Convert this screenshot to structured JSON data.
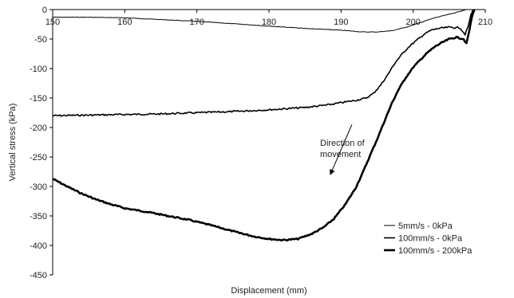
{
  "chart_data": {
    "type": "line",
    "xlabel": "Displacement (mm)",
    "ylabel": "Vertical stress (kPa)",
    "xlim": [
      150,
      210
    ],
    "ylim": [
      -450,
      0
    ],
    "x_ticks": [
      150,
      160,
      170,
      180,
      190,
      200,
      210
    ],
    "y_ticks": [
      0,
      -50,
      -100,
      -150,
      -200,
      -250,
      -300,
      -350,
      -400,
      -450
    ],
    "grid": false,
    "legend_position": "bottom-right",
    "annotation": {
      "lines": [
        "Direction of",
        "movement"
      ],
      "arrow_from": [
        191.5,
        -195
      ],
      "arrow_to": [
        188.5,
        -280
      ]
    },
    "series": [
      {
        "name": "5mm/s - 0kPa",
        "line_width": "thin",
        "color": "#000000",
        "points": [
          [
            150,
            -13
          ],
          [
            155,
            -13
          ],
          [
            160,
            -14
          ],
          [
            165,
            -17
          ],
          [
            170,
            -20
          ],
          [
            175,
            -24
          ],
          [
            180,
            -28
          ],
          [
            185,
            -32
          ],
          [
            190,
            -35
          ],
          [
            193,
            -38
          ],
          [
            195,
            -38
          ],
          [
            197,
            -36
          ],
          [
            199,
            -30
          ],
          [
            201,
            -22
          ],
          [
            203,
            -14
          ],
          [
            205,
            -8
          ],
          [
            206.5,
            -3
          ],
          [
            207.3,
            0
          ]
        ]
      },
      {
        "name": "100mm/s - 0kPa",
        "line_width": "medium",
        "color": "#000000",
        "points": [
          [
            150,
            -180
          ],
          [
            155,
            -179
          ],
          [
            160,
            -178
          ],
          [
            165,
            -177
          ],
          [
            170,
            -175
          ],
          [
            175,
            -173
          ],
          [
            180,
            -170
          ],
          [
            185,
            -166
          ],
          [
            188,
            -162
          ],
          [
            190,
            -158
          ],
          [
            192,
            -154
          ],
          [
            193.5,
            -150
          ],
          [
            194.5,
            -142
          ],
          [
            195.5,
            -128
          ],
          [
            196.5,
            -110
          ],
          [
            197.5,
            -90
          ],
          [
            198.5,
            -75
          ],
          [
            199.5,
            -62
          ],
          [
            200.5,
            -52
          ],
          [
            201.5,
            -42
          ],
          [
            202.5,
            -35
          ],
          [
            203.5,
            -32
          ],
          [
            205,
            -30
          ],
          [
            206.5,
            -31
          ],
          [
            207.2,
            -42
          ],
          [
            207.6,
            -30
          ],
          [
            208,
            -10
          ],
          [
            208.3,
            0
          ]
        ]
      },
      {
        "name": "100mm/s - 200kPa",
        "line_width": "thick",
        "color": "#000000",
        "points": [
          [
            150,
            -287
          ],
          [
            152,
            -300
          ],
          [
            154,
            -312
          ],
          [
            156,
            -322
          ],
          [
            158,
            -330
          ],
          [
            160,
            -337
          ],
          [
            163,
            -343
          ],
          [
            166,
            -350
          ],
          [
            169,
            -357
          ],
          [
            172,
            -366
          ],
          [
            175,
            -376
          ],
          [
            178,
            -385
          ],
          [
            180,
            -389
          ],
          [
            182,
            -391
          ],
          [
            184,
            -389
          ],
          [
            186,
            -380
          ],
          [
            187.5,
            -370
          ],
          [
            189,
            -355
          ],
          [
            190.5,
            -332
          ],
          [
            192,
            -303
          ],
          [
            193,
            -277
          ],
          [
            194,
            -248
          ],
          [
            195,
            -220
          ],
          [
            196,
            -190
          ],
          [
            197,
            -160
          ],
          [
            198,
            -135
          ],
          [
            199,
            -115
          ],
          [
            200,
            -98
          ],
          [
            201,
            -85
          ],
          [
            202,
            -73
          ],
          [
            203,
            -63
          ],
          [
            204,
            -56
          ],
          [
            205,
            -50
          ],
          [
            206,
            -47
          ],
          [
            207,
            -50
          ],
          [
            207.4,
            -58
          ],
          [
            207.8,
            -35
          ],
          [
            208.2,
            -10
          ],
          [
            208.5,
            0
          ]
        ]
      }
    ]
  }
}
